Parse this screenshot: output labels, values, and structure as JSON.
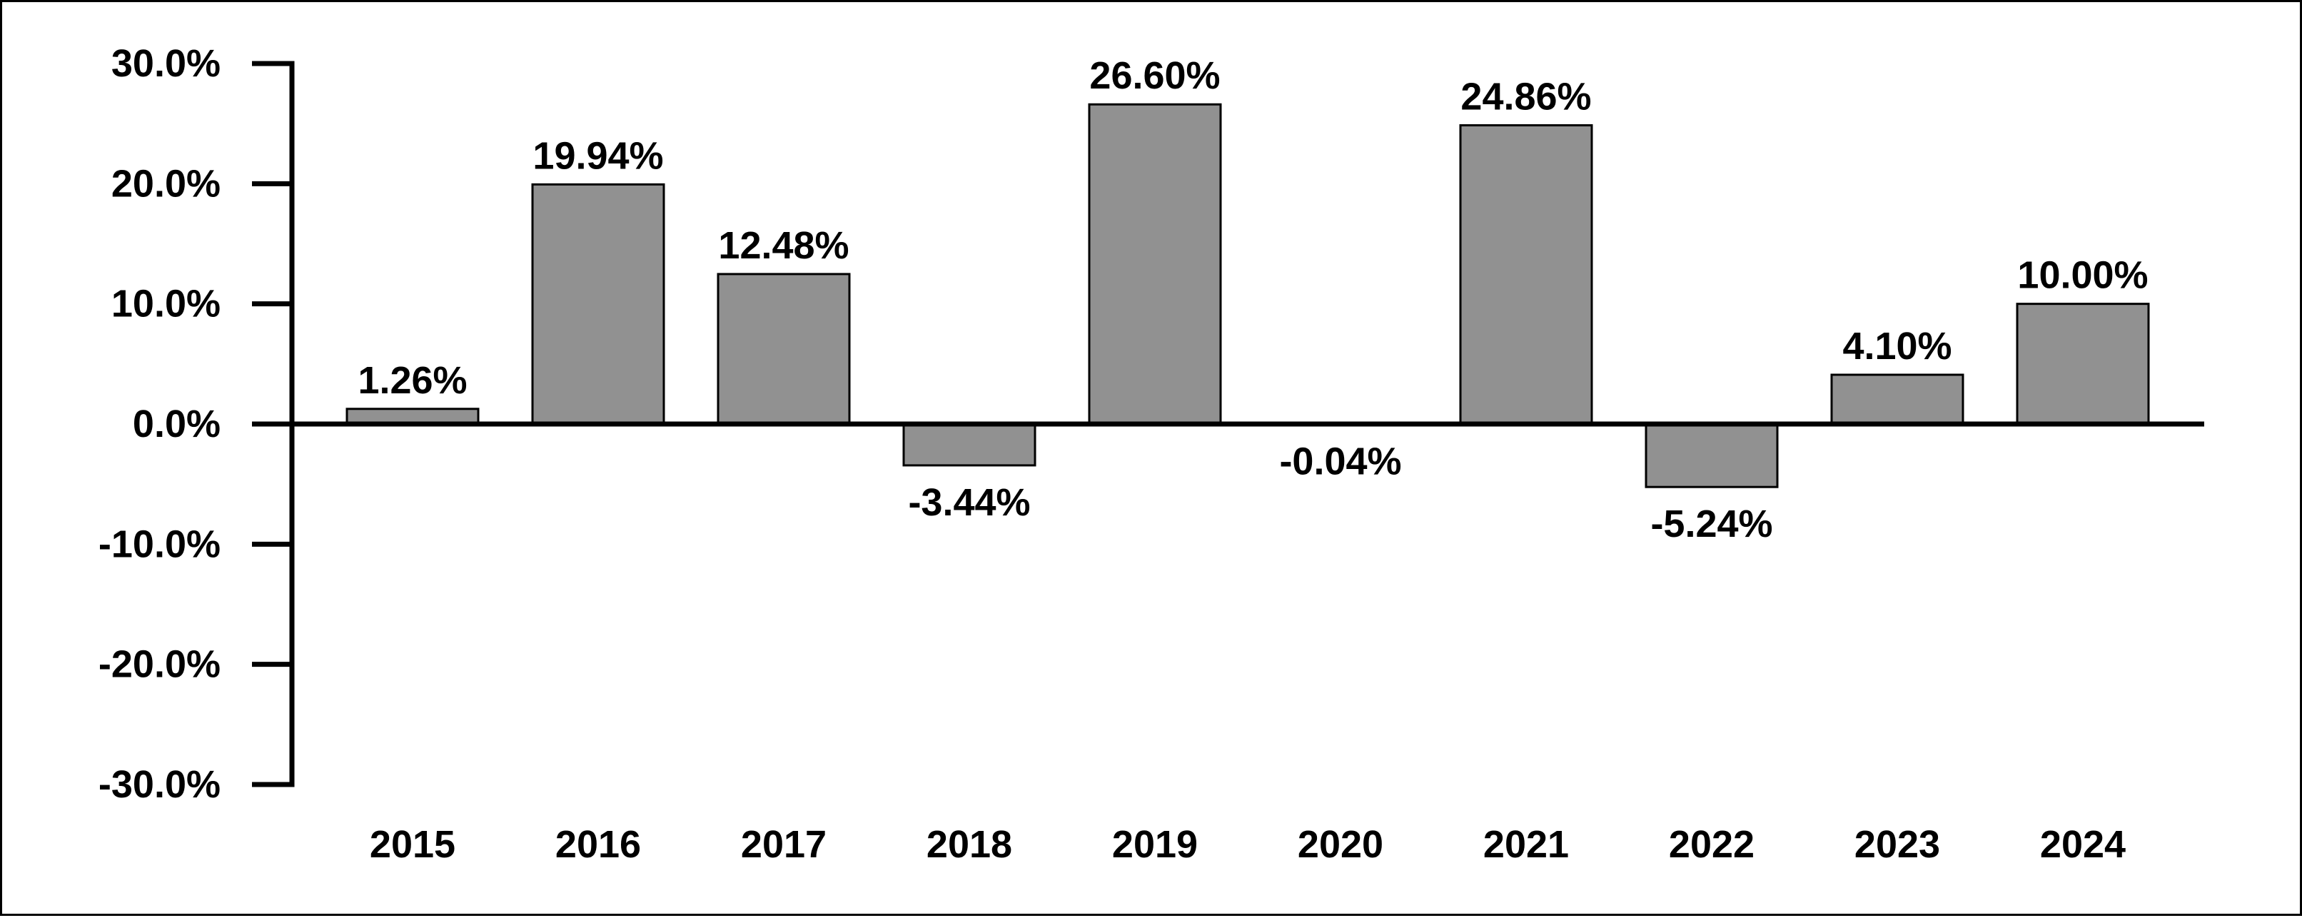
{
  "chart_data": {
    "type": "bar",
    "title": "",
    "xlabel": "",
    "ylabel": "",
    "categories": [
      "2015",
      "2016",
      "2017",
      "2018",
      "2019",
      "2020",
      "2021",
      "2022",
      "2023",
      "2024"
    ],
    "values": [
      1.26,
      19.94,
      12.48,
      -3.44,
      26.6,
      -0.04,
      24.86,
      -5.24,
      4.1,
      10.0
    ],
    "data_labels": [
      "1.26%",
      "19.94%",
      "12.48%",
      "-3.44%",
      "26.60%",
      "-0.04%",
      "24.86%",
      "-5.24%",
      "4.10%",
      "10.00%"
    ],
    "ylim": [
      -30,
      30
    ],
    "y_ticks": [
      30,
      20,
      10,
      0,
      -10,
      -20,
      -30
    ],
    "y_tick_labels": [
      "30.0%",
      "20.0%",
      "10.0%",
      "0.0%",
      "-10.0%",
      "-20.0%",
      "-30.0%"
    ],
    "grid": false,
    "legend": "none",
    "colors": {
      "bar_fill": "#919191",
      "bar_stroke": "#000000",
      "axis": "#000000",
      "text": "#000000",
      "background": "#ffffff"
    }
  }
}
